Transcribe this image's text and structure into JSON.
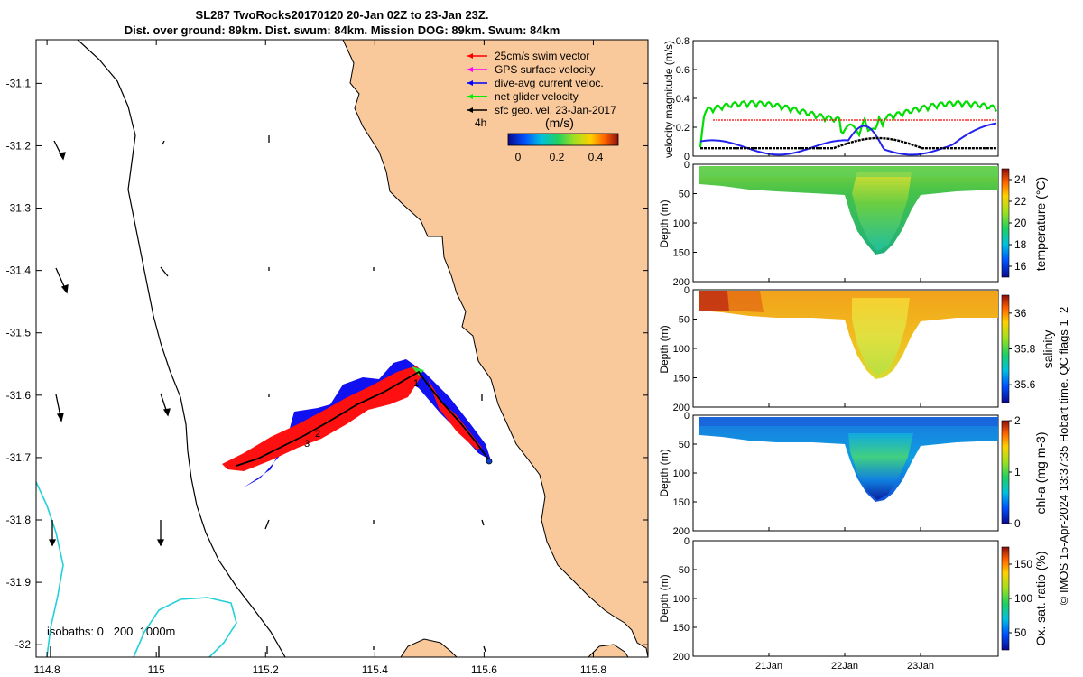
{
  "chart_data": {
    "type": "map_with_profiles",
    "title_line1": "SL287 TwoRocks20170120 20-Jan 02Z to 23-Jan 23Z.",
    "title_line2": "Dist. over ground: 89km. Dist. swum: 84km. Mission DOG: 89km. Swum: 84km",
    "map": {
      "lon_ticks": [
        "114.8",
        "115",
        "115.2",
        "115.4",
        "115.6",
        "115.8"
      ],
      "lat_ticks": [
        "-31.1",
        "-31.2",
        "-31.3",
        "-31.4",
        "-31.5",
        "-31.6",
        "-31.7",
        "-31.8",
        "-31.9",
        "-32"
      ],
      "xlim": [
        114.78,
        115.9
      ],
      "ylim": [
        -32.02,
        -31.03
      ],
      "legend": [
        {
          "label": "25cm/s swim vector",
          "color": "#ff0000"
        },
        {
          "label": "GPS surface velocity",
          "color": "#ff00ff"
        },
        {
          "label": "dive-avg current veloc.",
          "color": "#0000ff"
        },
        {
          "label": "net glider velocity",
          "color": "#00ee00"
        },
        {
          "label": "sfc geo. vel. 23-Jan-2017",
          "color": "#000000"
        }
      ],
      "legend_note": "4h",
      "colorbar_title": "(m/s)",
      "colorbar_ticks": [
        "0",
        "0.2",
        "0.4"
      ],
      "isobath_label": "isobaths: 0   200  1000m",
      "waypoint_labels": [
        "1",
        "2",
        "3"
      ],
      "track": [
        [
          115.13,
          -31.71
        ],
        [
          115.2,
          -31.69
        ],
        [
          115.28,
          -31.65
        ],
        [
          115.35,
          -31.62
        ],
        [
          115.43,
          -31.59
        ],
        [
          115.47,
          -31.57
        ],
        [
          115.51,
          -31.62
        ],
        [
          115.56,
          -31.67
        ],
        [
          115.61,
          -31.71
        ]
      ]
    },
    "panels": [
      {
        "id": "velocity",
        "ylabel": "velocity magnitude (m/s)",
        "yticks": [
          "0",
          "0.2",
          "0.4",
          "0.6",
          "0.8"
        ],
        "ylim": [
          0,
          0.8
        ],
        "series": [
          {
            "name": "net glider velocity",
            "color": "#00dd00"
          },
          {
            "name": "dive-avg current",
            "color": "#2222ee"
          },
          {
            "name": "sfc geo. vel.",
            "color": "#000000"
          },
          {
            "name": "swim speed",
            "color": "#ff0000",
            "value": 0.25
          }
        ]
      },
      {
        "id": "temperature",
        "ylabel": "Depth (m)",
        "cblabel": "temperature (°C)",
        "yticks": [
          "0",
          "50",
          "100",
          "150",
          "200"
        ],
        "ylim": [
          0,
          200
        ],
        "cbticks": [
          "16",
          "18",
          "20",
          "22",
          "24"
        ],
        "clim": [
          15,
          25
        ]
      },
      {
        "id": "salinity",
        "ylabel": "Depth (m)",
        "cblabel": "salinity",
        "yticks": [
          "0",
          "50",
          "100",
          "150",
          "200"
        ],
        "ylim": [
          0,
          200
        ],
        "cbticks": [
          "35.6",
          "35.8",
          "36"
        ],
        "clim": [
          35.5,
          36.1
        ]
      },
      {
        "id": "chla",
        "ylabel": "Depth (m)",
        "cblabel": "chl-a (mg m-3)",
        "yticks": [
          "0",
          "50",
          "100",
          "150",
          "200"
        ],
        "ylim": [
          0,
          200
        ],
        "cbticks": [
          "0",
          "1",
          "2"
        ],
        "clim": [
          0,
          2
        ]
      },
      {
        "id": "oxygen",
        "ylabel": "Depth (m)",
        "cblabel": "Ox. sat. ratio (%)",
        "yticks": [
          "0",
          "50",
          "100",
          "150",
          "200"
        ],
        "ylim": [
          0,
          200
        ],
        "cbticks": [
          "50",
          "100",
          "150"
        ],
        "clim": [
          25,
          175
        ]
      }
    ],
    "time_ticks": [
      "21Jan",
      "22Jan",
      "23Jan"
    ],
    "side_note": "© IMOS 15-Apr-2024 13:37:35 Hobart time. QC flags 1  2"
  }
}
